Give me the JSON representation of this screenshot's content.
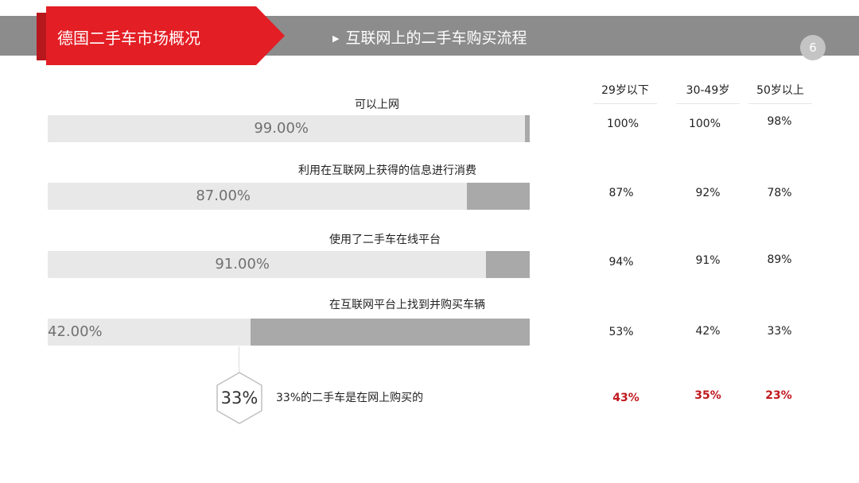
{
  "header": {
    "title": "德国二手车市场概况",
    "subtitle": "互联网上的二手车购买流程",
    "page_number": "6",
    "accent_color": "#e31e25"
  },
  "columns": [
    "29岁以下",
    "30-49岁",
    "50岁以上"
  ],
  "rows": [
    {
      "label": "可以上网",
      "value_label": "99.00%",
      "ages": [
        "100%",
        "100%",
        "98%"
      ]
    },
    {
      "label": "利用在互联网上获得的信息进行消费",
      "value_label": "87.00%",
      "ages": [
        "87%",
        "92%",
        "78%"
      ]
    },
    {
      "label": "使用了二手车在线平台",
      "value_label": "91.00%",
      "ages": [
        "94%",
        "91%",
        "89%"
      ]
    },
    {
      "label": "在互联网平台上找到并购买车辆",
      "value_label": "42.00%",
      "ages": [
        "53%",
        "42%",
        "33%"
      ]
    }
  ],
  "summary": {
    "badge": "33%",
    "text": "33%的二手车是在网上购买的",
    "ages": [
      "43%",
      "35%",
      "23%"
    ],
    "highlight_color": "#c0181e"
  },
  "chart_data": {
    "type": "bar",
    "orientation": "horizontal",
    "categories": [
      "可以上网",
      "利用在互联网上获得的信息进行消费",
      "使用了二手车在线平台",
      "在互联网平台上找到并购买车辆"
    ],
    "values": [
      99,
      87,
      91,
      42
    ],
    "xlim": [
      0,
      100
    ],
    "grid": false
  }
}
